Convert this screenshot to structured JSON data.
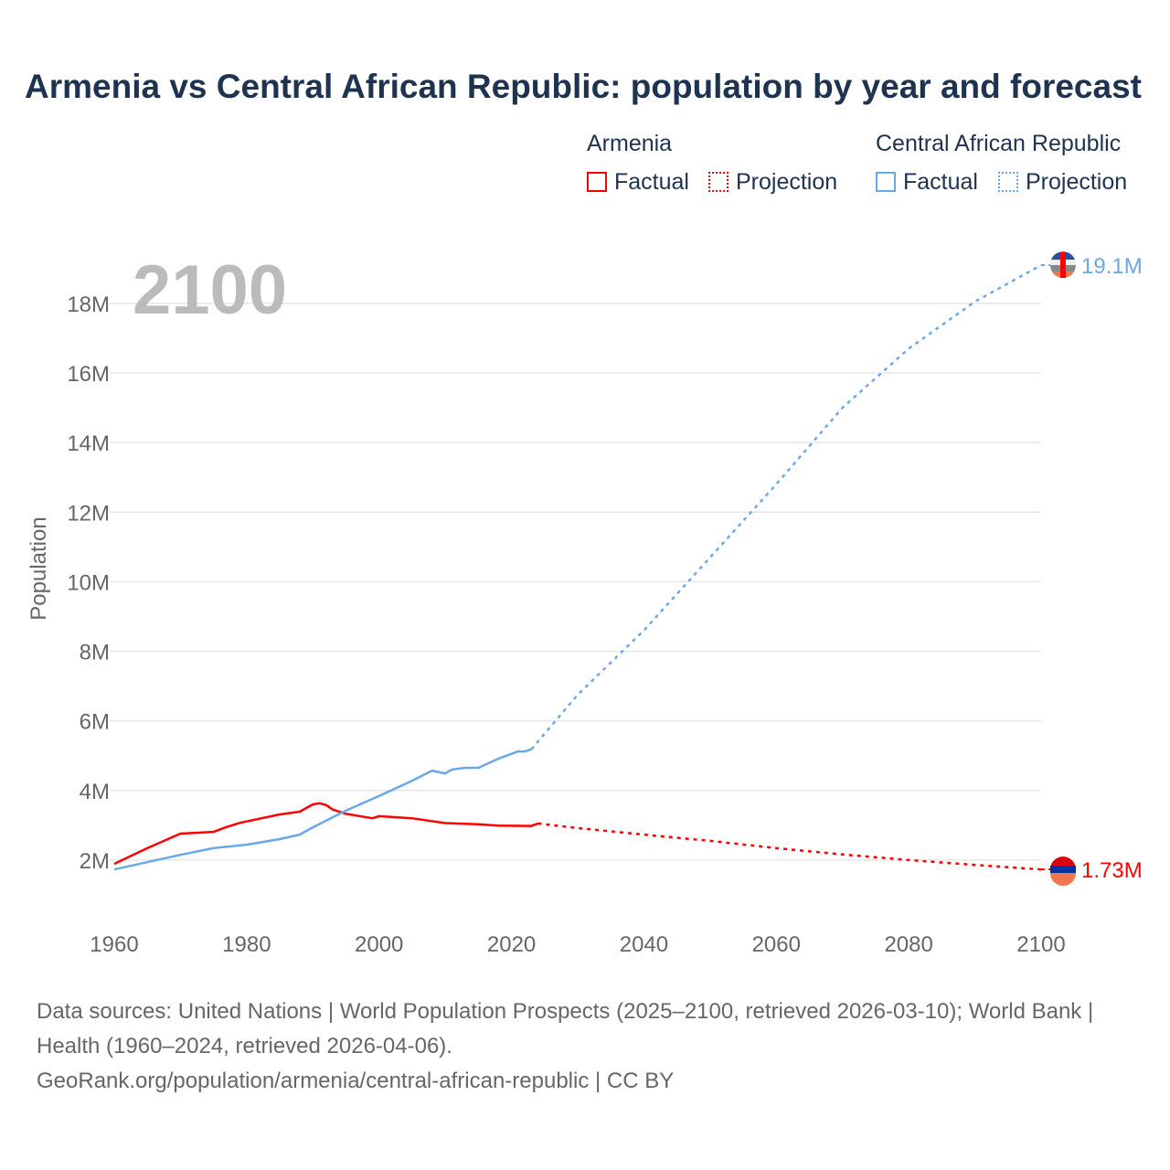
{
  "title": "Armenia vs Central African Republic: population by year and forecast",
  "legend": {
    "groups": [
      {
        "name": "Armenia",
        "color": "#ff0000",
        "factual": "Factual",
        "projection": "Projection"
      },
      {
        "name": "Central African Republic",
        "color": "#6aa8e8",
        "factual": "Factual",
        "projection": "Projection"
      }
    ]
  },
  "year_label": "2100",
  "footer": {
    "line1": "Data sources: United Nations | World Population Prospects (2025–2100, retrieved 2026-03-10); World Bank | Health (1960–2024, retrieved 2026-04-06).",
    "line2": "GeoRank.org/population/armenia/central-african-republic | CC BY"
  },
  "chart_data": {
    "type": "line",
    "title": "Armenia vs Central African Republic: population by year and forecast",
    "xlabel": "",
    "ylabel": "Population",
    "xlim": [
      1960,
      2100
    ],
    "ylim": [
      0,
      19.5
    ],
    "xticks": [
      1960,
      1980,
      2000,
      2020,
      2040,
      2060,
      2080,
      2100
    ],
    "yticks": [
      {
        "v": 2,
        "label": "2M"
      },
      {
        "v": 4,
        "label": "4M"
      },
      {
        "v": 6,
        "label": "6M"
      },
      {
        "v": 8,
        "label": "8M"
      },
      {
        "v": 10,
        "label": "10M"
      },
      {
        "v": 12,
        "label": "12M"
      },
      {
        "v": 14,
        "label": "14M"
      },
      {
        "v": 16,
        "label": "16M"
      },
      {
        "v": 18,
        "label": "18M"
      }
    ],
    "grid": true,
    "series": [
      {
        "name": "Armenia",
        "color": "#ff0000",
        "end_label": "1.73M",
        "factual": [
          [
            1960,
            1.89
          ],
          [
            1965,
            2.34
          ],
          [
            1970,
            2.76
          ],
          [
            1975,
            2.81
          ],
          [
            1977,
            2.95
          ],
          [
            1979,
            3.07
          ],
          [
            1985,
            3.31
          ],
          [
            1988,
            3.39
          ],
          [
            1990,
            3.6
          ],
          [
            1991,
            3.63
          ],
          [
            1992,
            3.58
          ],
          [
            1993,
            3.45
          ],
          [
            1995,
            3.33
          ],
          [
            1999,
            3.2
          ],
          [
            2000,
            3.26
          ],
          [
            2005,
            3.2
          ],
          [
            2010,
            3.06
          ],
          [
            2015,
            3.03
          ],
          [
            2018,
            2.99
          ],
          [
            2023,
            2.98
          ],
          [
            2024,
            3.05
          ]
        ],
        "projection": [
          [
            2024,
            3.05
          ],
          [
            2030,
            2.92
          ],
          [
            2040,
            2.73
          ],
          [
            2050,
            2.55
          ],
          [
            2060,
            2.34
          ],
          [
            2070,
            2.16
          ],
          [
            2080,
            2.0
          ],
          [
            2090,
            1.86
          ],
          [
            2100,
            1.73
          ]
        ]
      },
      {
        "name": "Central African Republic",
        "color": "#6aa8e8",
        "end_label": "19.1M",
        "factual": [
          [
            1960,
            1.73
          ],
          [
            1965,
            1.94
          ],
          [
            1970,
            2.15
          ],
          [
            1975,
            2.34
          ],
          [
            1980,
            2.44
          ],
          [
            1985,
            2.6
          ],
          [
            1988,
            2.73
          ],
          [
            1990,
            2.94
          ],
          [
            1995,
            3.42
          ],
          [
            2000,
            3.84
          ],
          [
            2005,
            4.28
          ],
          [
            2008,
            4.57
          ],
          [
            2010,
            4.49
          ],
          [
            2011,
            4.6
          ],
          [
            2013,
            4.65
          ],
          [
            2015,
            4.65
          ],
          [
            2018,
            4.91
          ],
          [
            2021,
            5.12
          ],
          [
            2022,
            5.12
          ],
          [
            2023,
            5.18
          ]
        ],
        "projection": [
          [
            2023,
            5.18
          ],
          [
            2030,
            6.75
          ],
          [
            2040,
            8.6
          ],
          [
            2050,
            10.7
          ],
          [
            2060,
            12.8
          ],
          [
            2070,
            15.0
          ],
          [
            2080,
            16.7
          ],
          [
            2090,
            18.05
          ],
          [
            2100,
            19.1
          ]
        ]
      }
    ]
  }
}
